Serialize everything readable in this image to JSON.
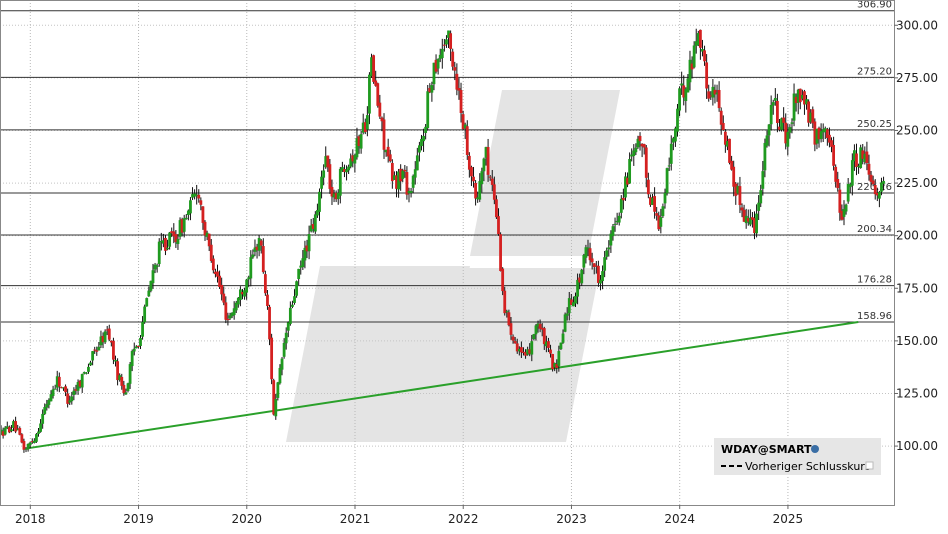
{
  "chart_data": {
    "type": "candlestick",
    "symbol": "WDAY@SMART",
    "legend": {
      "title": "WDAY@SMART",
      "entries": [
        "Vorheriger Schlusskurs"
      ],
      "placement": "bottom-right"
    },
    "colors": {
      "up": "#1f9a1f",
      "down": "#d42020",
      "trendline": "#2aa02a",
      "level_line": "#333333",
      "watermark": "#e3e3e3",
      "legend_bg": "#e6e6e6"
    },
    "x_ticks": [
      "2018",
      "2019",
      "2020",
      "2021",
      "2022",
      "2023",
      "2024",
      "2025"
    ],
    "x_range": [
      2017.72,
      2025.98
    ],
    "y_ticks": [
      "100.00",
      "125.00",
      "150.00",
      "175.00",
      "200.00",
      "225.00",
      "250.00",
      "275.00",
      "300.00"
    ],
    "y_ticks_values": [
      100,
      125,
      150,
      175,
      200,
      225,
      250,
      275,
      300
    ],
    "ylim": [
      72,
      312
    ],
    "levels": [
      {
        "value": 306.9,
        "label": "306.90"
      },
      {
        "value": 275.2,
        "label": "275.20"
      },
      {
        "value": 250.25,
        "label": "250.25"
      },
      {
        "value": 220.26,
        "label": "220.26"
      },
      {
        "value": 200.34,
        "label": "200.34"
      },
      {
        "value": 176.28,
        "label": "176.28"
      },
      {
        "value": 158.96,
        "label": "158.96"
      }
    ],
    "trendline": {
      "start": [
        2017.98,
        99
      ],
      "end": [
        2025.65,
        158.96
      ]
    },
    "price_path": [
      [
        2017.72,
        106
      ],
      [
        2017.85,
        110
      ],
      [
        2017.95,
        98
      ],
      [
        2018.05,
        105
      ],
      [
        2018.15,
        120
      ],
      [
        2018.25,
        132
      ],
      [
        2018.35,
        122
      ],
      [
        2018.45,
        130
      ],
      [
        2018.55,
        140
      ],
      [
        2018.65,
        150
      ],
      [
        2018.72,
        155
      ],
      [
        2018.8,
        135
      ],
      [
        2018.88,
        125
      ],
      [
        2018.95,
        145
      ],
      [
        2019.0,
        150
      ],
      [
        2019.1,
        175
      ],
      [
        2019.2,
        195
      ],
      [
        2019.35,
        200
      ],
      [
        2019.45,
        210
      ],
      [
        2019.55,
        223
      ],
      [
        2019.62,
        200
      ],
      [
        2019.72,
        182
      ],
      [
        2019.82,
        160
      ],
      [
        2019.92,
        170
      ],
      [
        2020.0,
        180
      ],
      [
        2020.12,
        200
      ],
      [
        2020.2,
        160
      ],
      [
        2020.25,
        115
      ],
      [
        2020.35,
        150
      ],
      [
        2020.45,
        175
      ],
      [
        2020.55,
        195
      ],
      [
        2020.65,
        210
      ],
      [
        2020.72,
        240
      ],
      [
        2020.8,
        215
      ],
      [
        2020.9,
        235
      ],
      [
        2021.0,
        240
      ],
      [
        2021.1,
        255
      ],
      [
        2021.15,
        282
      ],
      [
        2021.25,
        250
      ],
      [
        2021.35,
        225
      ],
      [
        2021.45,
        230
      ],
      [
        2021.5,
        220
      ],
      [
        2021.62,
        245
      ],
      [
        2021.72,
        280
      ],
      [
        2021.85,
        295
      ],
      [
        2021.92,
        280
      ],
      [
        2022.0,
        255
      ],
      [
        2022.12,
        215
      ],
      [
        2022.2,
        240
      ],
      [
        2022.3,
        215
      ],
      [
        2022.38,
        165
      ],
      [
        2022.48,
        150
      ],
      [
        2022.58,
        140
      ],
      [
        2022.68,
        160
      ],
      [
        2022.78,
        145
      ],
      [
        2022.86,
        135
      ],
      [
        2022.95,
        165
      ],
      [
        2023.05,
        175
      ],
      [
        2023.15,
        195
      ],
      [
        2023.25,
        180
      ],
      [
        2023.35,
        195
      ],
      [
        2023.45,
        215
      ],
      [
        2023.55,
        235
      ],
      [
        2023.65,
        245
      ],
      [
        2023.72,
        220
      ],
      [
        2023.82,
        205
      ],
      [
        2023.9,
        235
      ],
      [
        2024.0,
        265
      ],
      [
        2024.1,
        280
      ],
      [
        2024.18,
        300
      ],
      [
        2024.25,
        270
      ],
      [
        2024.35,
        265
      ],
      [
        2024.45,
        240
      ],
      [
        2024.5,
        225
      ],
      [
        2024.6,
        210
      ],
      [
        2024.7,
        205
      ],
      [
        2024.78,
        240
      ],
      [
        2024.85,
        265
      ],
      [
        2024.95,
        250
      ],
      [
        2025.0,
        245
      ],
      [
        2025.08,
        270
      ],
      [
        2025.18,
        260
      ],
      [
        2025.25,
        245
      ],
      [
        2025.35,
        255
      ],
      [
        2025.45,
        225
      ],
      [
        2025.5,
        208
      ],
      [
        2025.6,
        235
      ],
      [
        2025.7,
        240
      ],
      [
        2025.82,
        220
      ],
      [
        2025.9,
        228
      ]
    ]
  }
}
